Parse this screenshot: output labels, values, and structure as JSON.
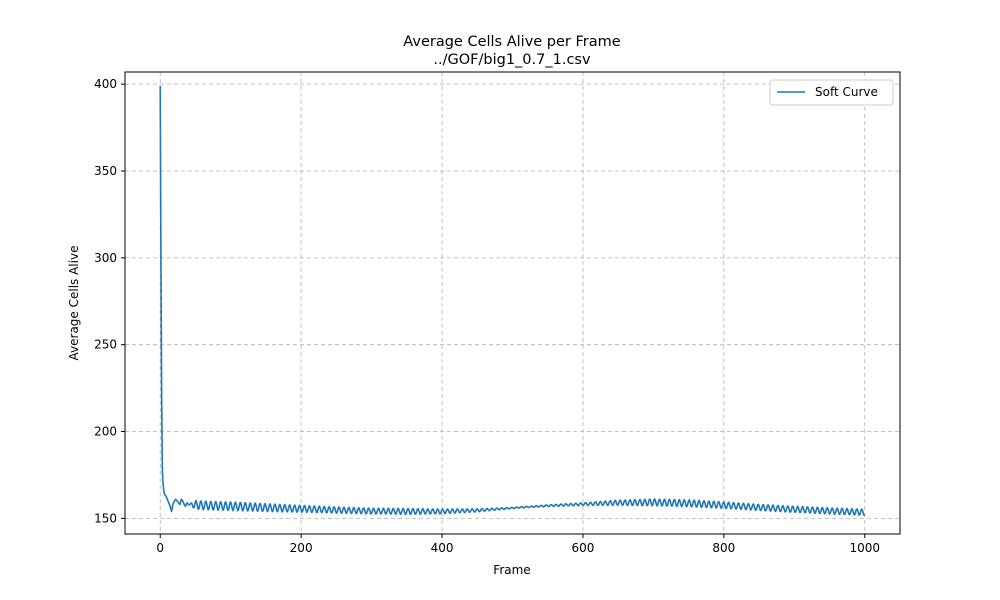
{
  "chart_data": {
    "type": "line",
    "title": "Average Cells Alive per Frame",
    "subtitle": "../GOF/big1_0.7_1.csv",
    "xlabel": "Frame",
    "ylabel": "Average Cells Alive",
    "xlim": [
      -50,
      1050
    ],
    "ylim": [
      141,
      407
    ],
    "xticks": [
      0,
      200,
      400,
      600,
      800,
      1000
    ],
    "yticks": [
      150,
      200,
      250,
      300,
      350,
      400
    ],
    "grid": true,
    "legend_position": "top-right",
    "series": [
      {
        "name": "Soft Curve",
        "color": "#1f77b4",
        "x": [
          0,
          1,
          2,
          3,
          4,
          5,
          6,
          8,
          10,
          12,
          14,
          16,
          18,
          20,
          22,
          24,
          26,
          28,
          30,
          32,
          34,
          36,
          38,
          40,
          50,
          60,
          80,
          100,
          150,
          200,
          250,
          300,
          350,
          400,
          450,
          500,
          550,
          600,
          650,
          700,
          750,
          800,
          850,
          900,
          950,
          1000
        ],
        "y": [
          399,
          300,
          220,
          178,
          170,
          166,
          164,
          163,
          161,
          159,
          157,
          154,
          158,
          160,
          161,
          160,
          159,
          158,
          161,
          160,
          158,
          157,
          159,
          158,
          157.8,
          157.5,
          157.2,
          157,
          156.2,
          155.5,
          154.8,
          154.2,
          154,
          154,
          154.6,
          156,
          157.3,
          158.2,
          159,
          159.2,
          158.7,
          157.6,
          156.3,
          155.2,
          154.3,
          153.5
        ],
        "oscillation_amplitude": [
          0,
          0,
          0,
          0,
          0,
          0,
          0,
          0,
          0,
          0,
          0,
          0,
          0,
          0,
          0,
          0,
          0,
          0,
          0,
          0,
          0,
          0,
          0,
          0,
          2.5,
          2.5,
          2.5,
          2.5,
          2.3,
          2.0,
          1.8,
          1.7,
          1.7,
          1.4,
          0.9,
          0.3,
          0.5,
          0.8,
          1.5,
          2.0,
          2.0,
          1.9,
          1.8,
          1.8,
          1.8,
          1.8
        ],
        "oscillation_period": 7
      }
    ]
  }
}
